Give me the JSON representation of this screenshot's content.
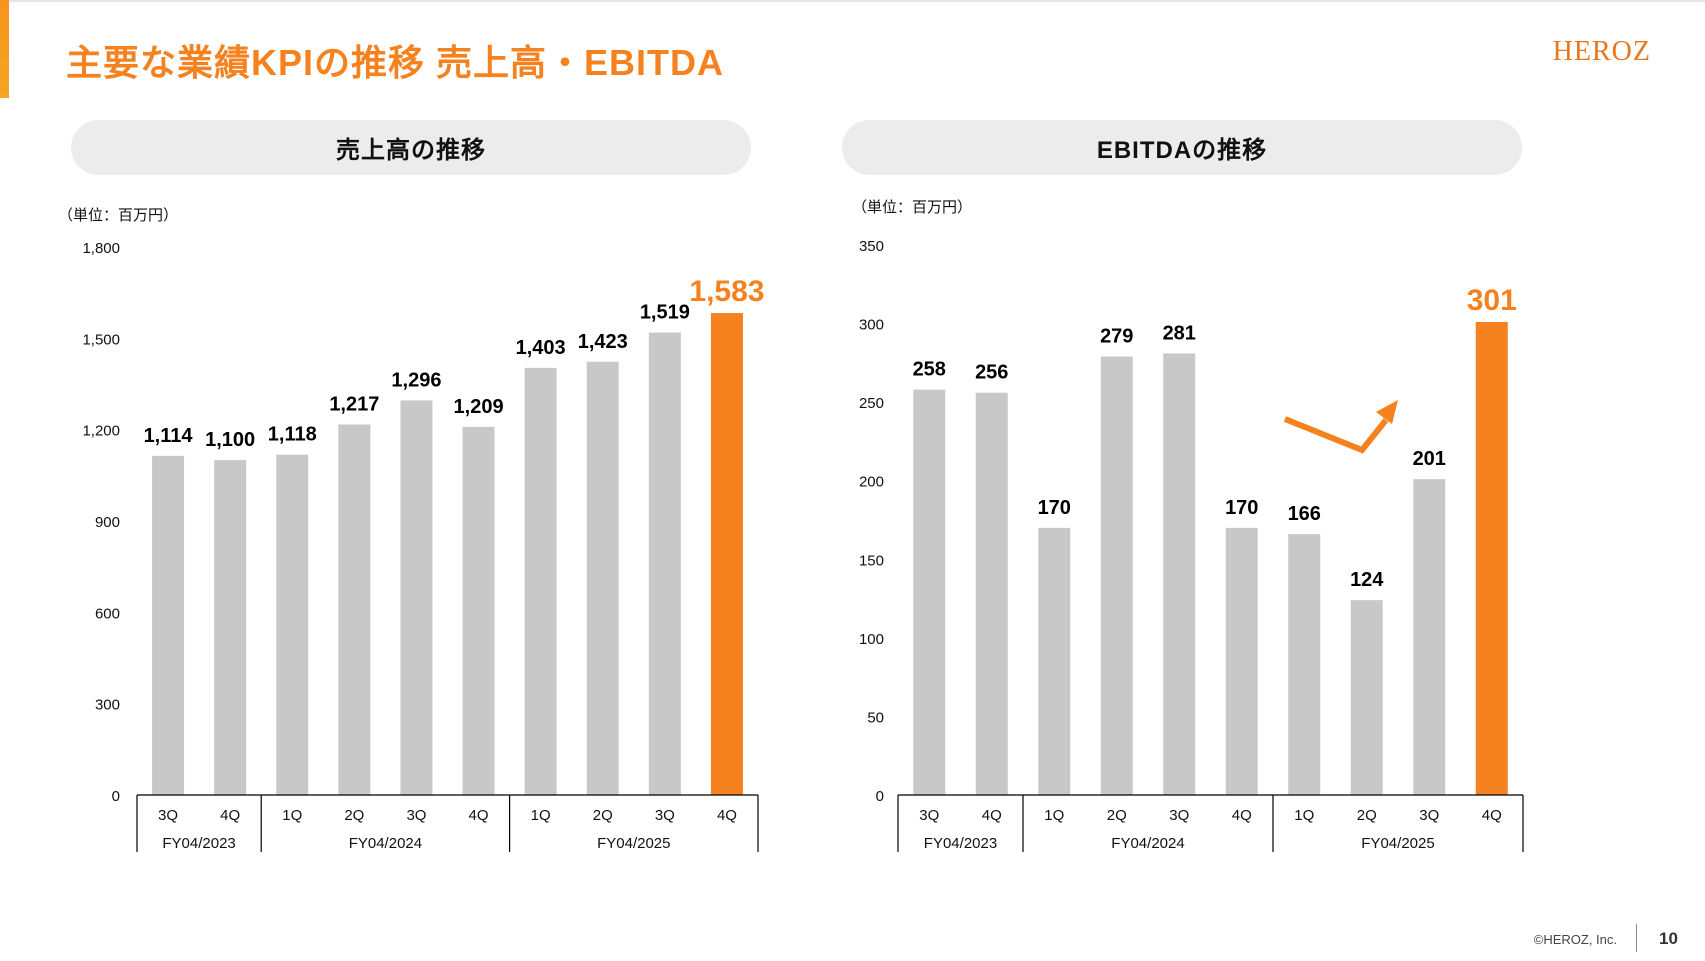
{
  "page": {
    "title": "主要な業績KPIの推移 売上高・EBITDA",
    "logo": "HEROZ",
    "copyright": "©HEROZ, Inc.",
    "page_number": "10",
    "accent_color": "#F5821F",
    "bar_color": "#C8C8C8"
  },
  "left_panel": {
    "heading": "売上高の推移",
    "unit": "（単位：百万円）"
  },
  "right_panel": {
    "heading": "EBITDAの推移",
    "unit": "（単位：百万円）"
  },
  "chart_data": [
    {
      "type": "bar",
      "title": "売上高の推移",
      "categories": [
        "3Q",
        "4Q",
        "1Q",
        "2Q",
        "3Q",
        "4Q",
        "1Q",
        "2Q",
        "3Q",
        "4Q"
      ],
      "groups": [
        {
          "label": "FY04/2023",
          "count": 2
        },
        {
          "label": "FY04/2024",
          "count": 4
        },
        {
          "label": "FY04/2025",
          "count": 4
        }
      ],
      "values": [
        1114,
        1100,
        1118,
        1217,
        1296,
        1209,
        1403,
        1423,
        1519,
        1583
      ],
      "value_labels": [
        "1,114",
        "1,100",
        "1,118",
        "1,217",
        "1,296",
        "1,209",
        "1,403",
        "1,423",
        "1,519",
        "1,583"
      ],
      "highlight_index": 9,
      "ylim": [
        0,
        1800
      ],
      "yticks": [
        0,
        300,
        600,
        900,
        1200,
        1500,
        1800
      ],
      "ytick_labels": [
        "0",
        "300",
        "600",
        "900",
        "1,200",
        "1,500",
        "1,800"
      ],
      "grid": false,
      "legend": "none"
    },
    {
      "type": "bar",
      "title": "EBITDAの推移",
      "categories": [
        "3Q",
        "4Q",
        "1Q",
        "2Q",
        "3Q",
        "4Q",
        "1Q",
        "2Q",
        "3Q",
        "4Q"
      ],
      "groups": [
        {
          "label": "FY04/2023",
          "count": 2
        },
        {
          "label": "FY04/2024",
          "count": 4
        },
        {
          "label": "FY04/2025",
          "count": 4
        }
      ],
      "values": [
        258,
        256,
        170,
        279,
        281,
        170,
        166,
        124,
        201,
        301
      ],
      "value_labels": [
        "258",
        "256",
        "170",
        "279",
        "281",
        "170",
        "166",
        "124",
        "201",
        "301"
      ],
      "highlight_index": 9,
      "ylim": [
        0,
        350
      ],
      "yticks": [
        0,
        50,
        100,
        150,
        200,
        250,
        300,
        350
      ],
      "ytick_labels": [
        "0",
        "50",
        "100",
        "150",
        "200",
        "250",
        "300",
        "350"
      ],
      "grid": false,
      "legend": "none",
      "annotation": "upward trend arrow"
    }
  ]
}
